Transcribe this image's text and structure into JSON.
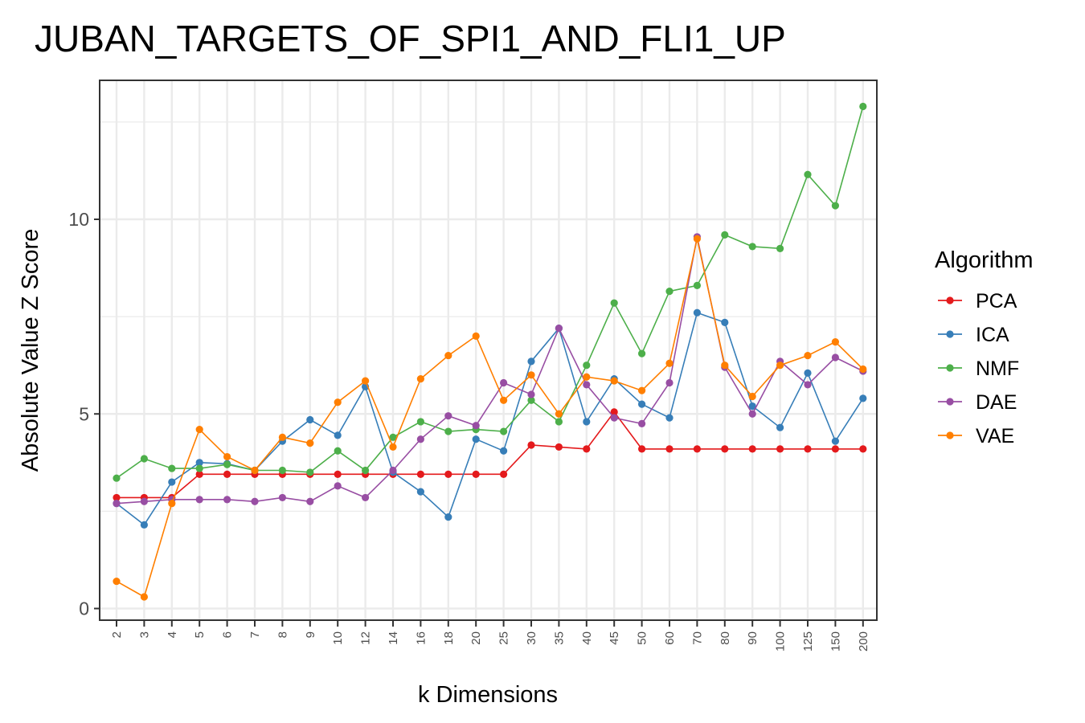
{
  "chart_data": {
    "type": "line",
    "title": "JUBAN_TARGETS_OF_SPI1_AND_FLI1_UP",
    "xlabel": "k Dimensions",
    "ylabel": "Absolute Value Z Score",
    "categories": [
      "2",
      "3",
      "4",
      "5",
      "6",
      "7",
      "8",
      "9",
      "10",
      "12",
      "14",
      "16",
      "18",
      "20",
      "25",
      "30",
      "35",
      "40",
      "45",
      "50",
      "60",
      "70",
      "80",
      "90",
      "100",
      "125",
      "150",
      "200"
    ],
    "ylim": [
      -0.3,
      13.6
    ],
    "yticks": [
      0,
      5,
      10
    ],
    "ytick_labels": [
      "0",
      "5",
      "10"
    ],
    "grid": true,
    "legend_title": "Algorithm",
    "legend_position": "right",
    "series": [
      {
        "name": "PCA",
        "color": "#e41a1c",
        "values": [
          2.85,
          2.85,
          2.85,
          3.45,
          3.45,
          3.45,
          3.45,
          3.45,
          3.45,
          3.45,
          3.45,
          3.45,
          3.45,
          3.45,
          3.45,
          4.2,
          4.15,
          4.1,
          5.05,
          4.1,
          4.1,
          4.1,
          4.1,
          4.1,
          4.1,
          4.1,
          4.1,
          4.1
        ]
      },
      {
        "name": "ICA",
        "color": "#377eb8",
        "values": [
          2.7,
          2.15,
          3.25,
          3.75,
          3.72,
          3.55,
          4.3,
          4.85,
          4.45,
          5.7,
          3.5,
          3.0,
          2.35,
          4.35,
          4.05,
          6.35,
          7.2,
          4.8,
          5.9,
          5.25,
          4.9,
          7.6,
          7.35,
          5.2,
          4.65,
          6.05,
          4.3,
          5.4
        ]
      },
      {
        "name": "NMF",
        "color": "#4daf4a",
        "values": [
          3.35,
          3.85,
          3.6,
          3.6,
          3.7,
          3.55,
          3.55,
          3.5,
          4.05,
          3.55,
          4.4,
          4.8,
          4.55,
          4.6,
          4.55,
          5.35,
          4.8,
          6.25,
          7.85,
          6.55,
          8.15,
          8.3,
          9.6,
          9.3,
          9.25,
          11.15,
          10.35,
          12.9
        ]
      },
      {
        "name": "DAE",
        "color": "#984ea3",
        "values": [
          2.7,
          2.75,
          2.8,
          2.8,
          2.8,
          2.75,
          2.85,
          2.75,
          3.15,
          2.85,
          3.55,
          4.35,
          4.95,
          4.7,
          5.8,
          5.5,
          7.2,
          5.75,
          4.9,
          4.75,
          5.8,
          9.55,
          6.2,
          5.0,
          6.35,
          5.75,
          6.45,
          6.1
        ]
      },
      {
        "name": "VAE",
        "color": "#ff7f00",
        "values": [
          0.7,
          0.3,
          2.7,
          4.6,
          3.9,
          3.55,
          4.4,
          4.25,
          5.3,
          5.85,
          4.15,
          5.9,
          6.5,
          7.0,
          5.35,
          6.0,
          5.0,
          5.95,
          5.85,
          5.6,
          6.3,
          9.5,
          6.25,
          5.45,
          6.25,
          6.5,
          6.85,
          6.15
        ]
      }
    ]
  }
}
